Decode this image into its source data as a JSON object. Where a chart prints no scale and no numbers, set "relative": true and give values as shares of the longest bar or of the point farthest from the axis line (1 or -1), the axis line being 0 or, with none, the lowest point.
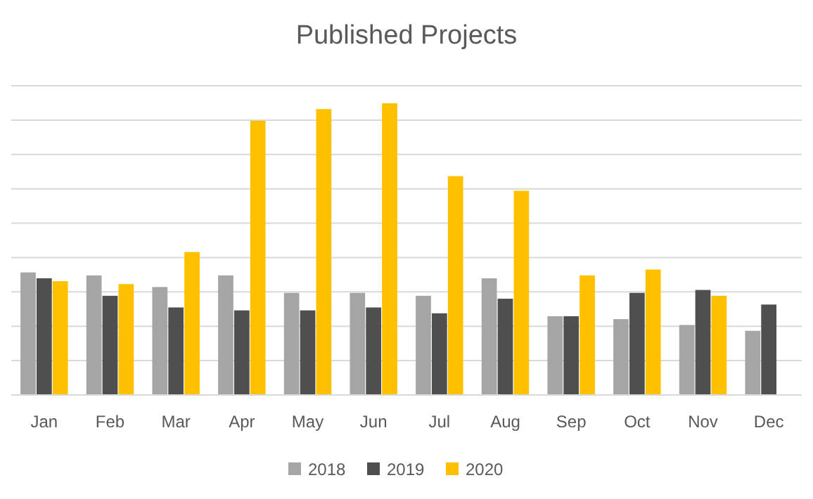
{
  "chart_data": {
    "type": "bar",
    "title": "Published Projects",
    "relative": true,
    "grid": true,
    "legend": "bottom",
    "categories": [
      "Jan",
      "Feb",
      "Mar",
      "Apr",
      "May",
      "Jun",
      "Jul",
      "Aug",
      "Sep",
      "Oct",
      "Nov",
      "Dec"
    ],
    "series": [
      {
        "name": "2018",
        "color": "#a5a5a5",
        "values": [
          0.42,
          0.41,
          0.37,
          0.41,
          0.35,
          0.35,
          0.34,
          0.4,
          0.27,
          0.26,
          0.24,
          0.22
        ]
      },
      {
        "name": "2019",
        "color": "#4f4f4f",
        "values": [
          0.4,
          0.34,
          0.3,
          0.29,
          0.29,
          0.3,
          0.28,
          0.33,
          0.27,
          0.35,
          0.36,
          0.31
        ]
      },
      {
        "name": "2020",
        "color": "#ffc000",
        "values": [
          0.39,
          0.38,
          0.49,
          0.94,
          0.98,
          1,
          0.75,
          0.7,
          0.41,
          0.43,
          0.34,
          null
        ]
      }
    ]
  }
}
